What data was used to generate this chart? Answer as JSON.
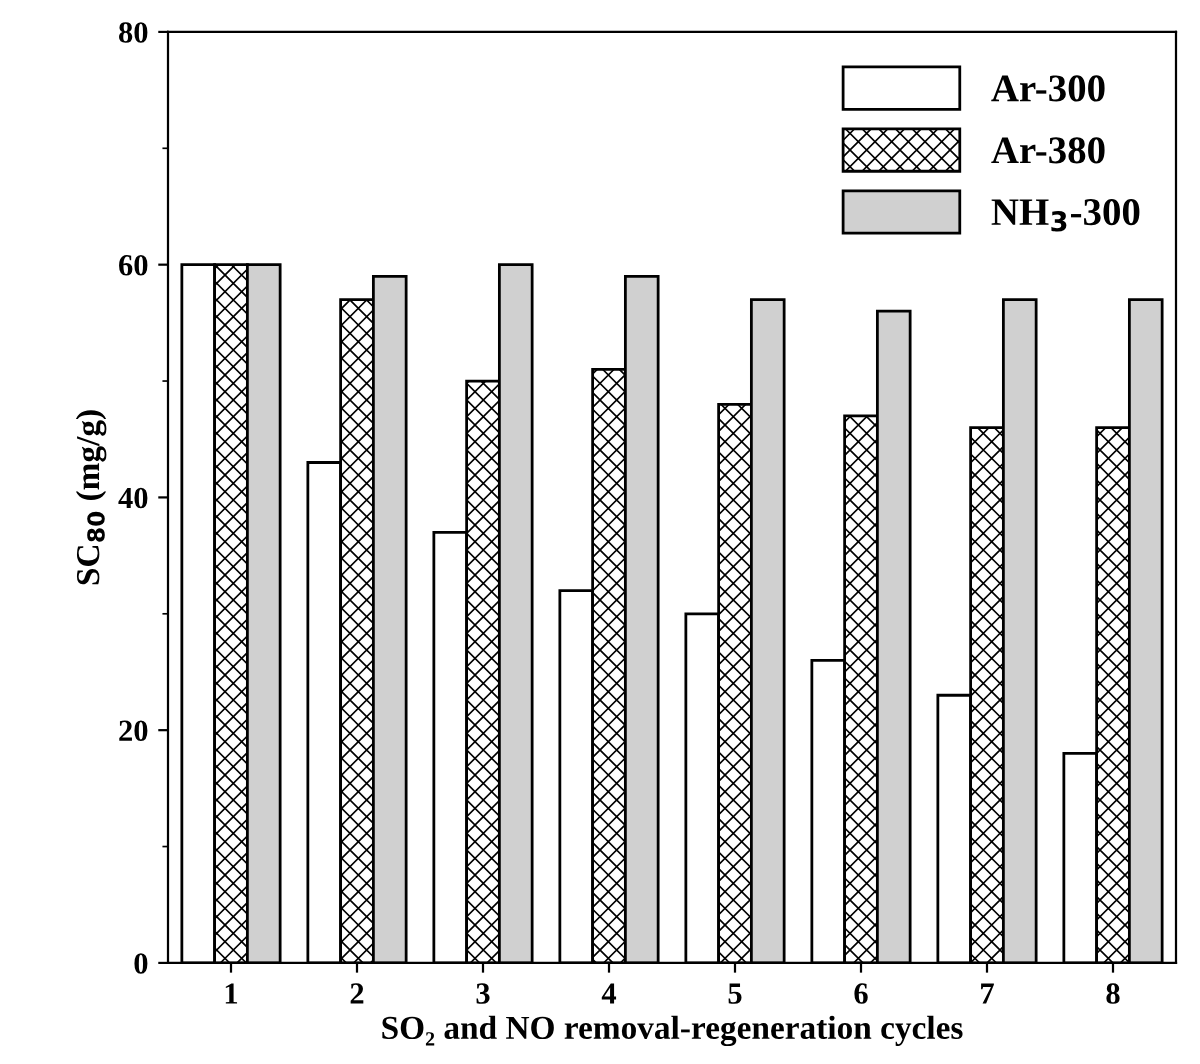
{
  "chart_data": {
    "type": "bar",
    "xlabel": "SO₂ and NO removal-regeneration cycles",
    "ylabel": "SC$_{80}$ (mg/g)",
    "categories": [
      "1",
      "2",
      "3",
      "4",
      "5",
      "6",
      "7",
      "8"
    ],
    "series": [
      {
        "name": "Ar-300",
        "color": "#ffffff",
        "values": [
          60,
          43,
          37,
          32,
          30,
          26,
          23,
          18
        ]
      },
      {
        "name": "Ar-380",
        "color": "#000000",
        "values": [
          60,
          57,
          50,
          51,
          48,
          47,
          46,
          46
        ]
      },
      {
        "name": "NH$_{3}$-300",
        "color": "#d0d0d0",
        "values": [
          60,
          59,
          60,
          59,
          57,
          56,
          57,
          57
        ]
      }
    ],
    "ylim": [
      0,
      80
    ],
    "yticks": [
      0,
      20,
      40,
      60,
      80
    ],
    "legend": "top right",
    "grid": false
  }
}
